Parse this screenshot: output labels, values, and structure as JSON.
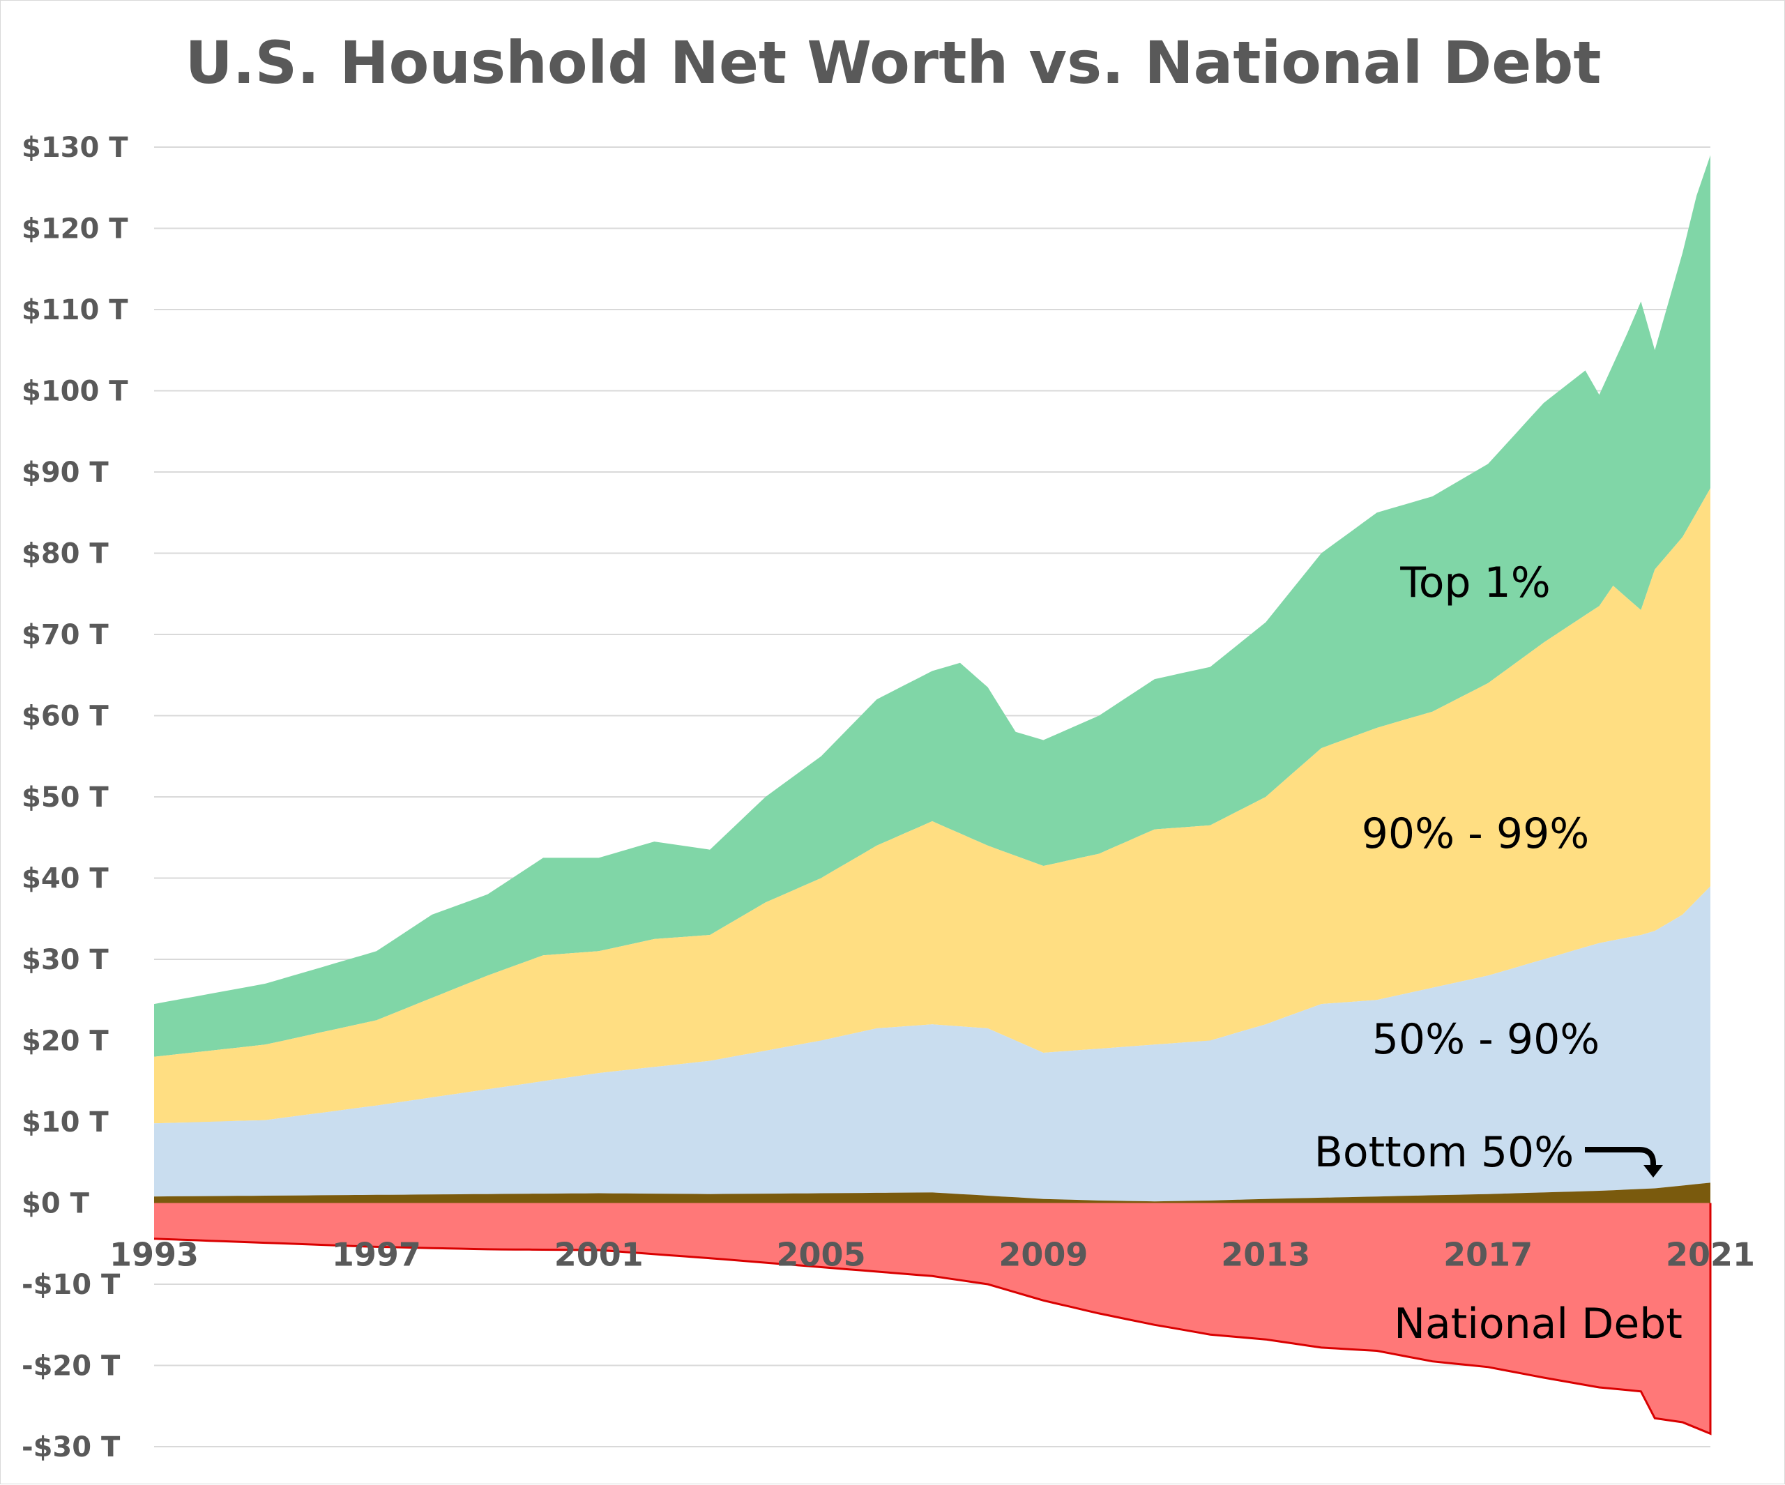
{
  "chart_data": {
    "type": "area",
    "title": "U.S. Houshold Net Worth vs. National Debt",
    "xlabel": "",
    "ylabel": "",
    "xlim": [
      1993,
      2021
    ],
    "ylim": [
      -30,
      130
    ],
    "grid": true,
    "legend": "none",
    "x_ticks": [
      {
        "value": 1993,
        "label": "1993"
      },
      {
        "value": 1997,
        "label": "1997"
      },
      {
        "value": 2001,
        "label": "2001"
      },
      {
        "value": 2005,
        "label": "2005"
      },
      {
        "value": 2009,
        "label": "2009"
      },
      {
        "value": 2013,
        "label": "2013"
      },
      {
        "value": 2017,
        "label": "2017"
      },
      {
        "value": 2021,
        "label": "2021"
      }
    ],
    "y_ticks": [
      {
        "value": 130,
        "label": "$130  T"
      },
      {
        "value": 120,
        "label": "$120  T"
      },
      {
        "value": 110,
        "label": "$110  T"
      },
      {
        "value": 100,
        "label": "$100  T"
      },
      {
        "value": 90,
        "label": "$90  T"
      },
      {
        "value": 80,
        "label": "$80  T"
      },
      {
        "value": 70,
        "label": "$70  T"
      },
      {
        "value": 60,
        "label": "$60  T"
      },
      {
        "value": 50,
        "label": "$50  T"
      },
      {
        "value": 40,
        "label": "$40  T"
      },
      {
        "value": 30,
        "label": "$30  T"
      },
      {
        "value": 20,
        "label": "$20  T"
      },
      {
        "value": 10,
        "label": "$10  T"
      },
      {
        "value": 0,
        "label": "$0  T"
      },
      {
        "value": -10,
        "label": "-$10  T"
      },
      {
        "value": -20,
        "label": "-$20  T"
      },
      {
        "value": -30,
        "label": "-$30  T"
      }
    ],
    "colors": {
      "top1": "#80d6a7",
      "p90_99": "#ffde82",
      "p50_90": "#c9ddef",
      "bottom50": "#7a5a0d",
      "debt_fill": "#ff7878",
      "debt_line": "#d90000",
      "grid": "#d9d9d9"
    },
    "series": [
      {
        "name": "Bottom 50%",
        "x": [
          1993,
          1995,
          1997,
          1999,
          2001,
          2003,
          2005,
          2007,
          2008,
          2009,
          2010,
          2011,
          2012,
          2013,
          2015,
          2017,
          2019,
          2020,
          2021
        ],
        "values": [
          0.8,
          0.9,
          1.0,
          1.1,
          1.2,
          1.1,
          1.2,
          1.3,
          0.9,
          0.5,
          0.3,
          0.2,
          0.3,
          0.5,
          0.8,
          1.1,
          1.5,
          1.8,
          2.5
        ]
      },
      {
        "name": "50% - 90%",
        "x": [
          1993,
          1995,
          1997,
          1999,
          2001,
          2003,
          2005,
          2006,
          2007,
          2008,
          2009,
          2010,
          2011,
          2012,
          2013,
          2014,
          2015,
          2016,
          2017,
          2018,
          2019,
          2019.75,
          2020,
          2020.5,
          2021
        ],
        "values": [
          9.8,
          10.2,
          12.0,
          14.0,
          16.0,
          17.5,
          20.0,
          21.5,
          22.0,
          21.5,
          18.5,
          19.0,
          19.5,
          20.0,
          22.0,
          24.5,
          25.0,
          26.5,
          28.0,
          30.0,
          32.0,
          33.0,
          33.5,
          35.5,
          39.0
        ]
      },
      {
        "name": "90% - 99%",
        "x": [
          1993,
          1995,
          1997,
          1999,
          2000,
          2001,
          2002,
          2003,
          2004,
          2005,
          2006,
          2007,
          2008,
          2009,
          2010,
          2011,
          2012,
          2013,
          2014,
          2015,
          2016,
          2017,
          2018,
          2019,
          2019.25,
          2019.75,
          2020,
          2020.5,
          2021
        ],
        "values": [
          18.0,
          19.5,
          22.5,
          28.0,
          30.5,
          31.0,
          32.5,
          33.0,
          37.0,
          40.0,
          44.0,
          47.0,
          44.0,
          41.5,
          43.0,
          46.0,
          46.5,
          50.0,
          56.0,
          58.5,
          60.5,
          64.0,
          69.0,
          73.5,
          76.0,
          73.0,
          78.0,
          82.0,
          88.0
        ]
      },
      {
        "name": "Top 1%",
        "x": [
          1993,
          1995,
          1997,
          1998,
          1999,
          2000,
          2001,
          2002,
          2003,
          2004,
          2005,
          2006,
          2007,
          2007.5,
          2008,
          2008.5,
          2009,
          2010,
          2011,
          2012,
          2013,
          2014,
          2015,
          2016,
          2017,
          2018,
          2018.75,
          2019,
          2019.5,
          2019.75,
          2020,
          2020.5,
          2020.75,
          2021
        ],
        "values": [
          24.5,
          27.0,
          31.0,
          35.5,
          38.0,
          42.5,
          42.5,
          44.5,
          43.5,
          50.0,
          55.0,
          62.0,
          65.5,
          66.5,
          63.5,
          58.0,
          57.0,
          60.0,
          64.5,
          66.0,
          71.5,
          80.0,
          85.0,
          87.0,
          91.0,
          98.5,
          102.5,
          99.5,
          107.0,
          111.0,
          105.0,
          117.0,
          124.0,
          129.0
        ]
      },
      {
        "name": "National Debt",
        "x": [
          1993,
          1995,
          1997,
          1999,
          2001,
          2003,
          2005,
          2007,
          2008,
          2009,
          2010,
          2011,
          2012,
          2013,
          2014,
          2015,
          2016,
          2017,
          2018,
          2019,
          2019.75,
          2020,
          2020.5,
          2021
        ],
        "values": [
          -4.4,
          -4.9,
          -5.4,
          -5.7,
          -5.8,
          -6.8,
          -7.9,
          -9.0,
          -10.0,
          -12.0,
          -13.6,
          -15.0,
          -16.2,
          -16.8,
          -17.8,
          -18.2,
          -19.5,
          -20.2,
          -21.5,
          -22.7,
          -23.2,
          -26.5,
          -27.0,
          -28.4
        ]
      }
    ],
    "annotations": [
      {
        "text": "Top 1%",
        "series": "Top 1%"
      },
      {
        "text": "90% - 99%",
        "series": "90% - 99%"
      },
      {
        "text": "50% - 90%",
        "series": "50% - 90%"
      },
      {
        "text": "Bottom 50%",
        "series": "Bottom 50%"
      },
      {
        "text": "National Debt",
        "series": "National Debt"
      }
    ]
  }
}
